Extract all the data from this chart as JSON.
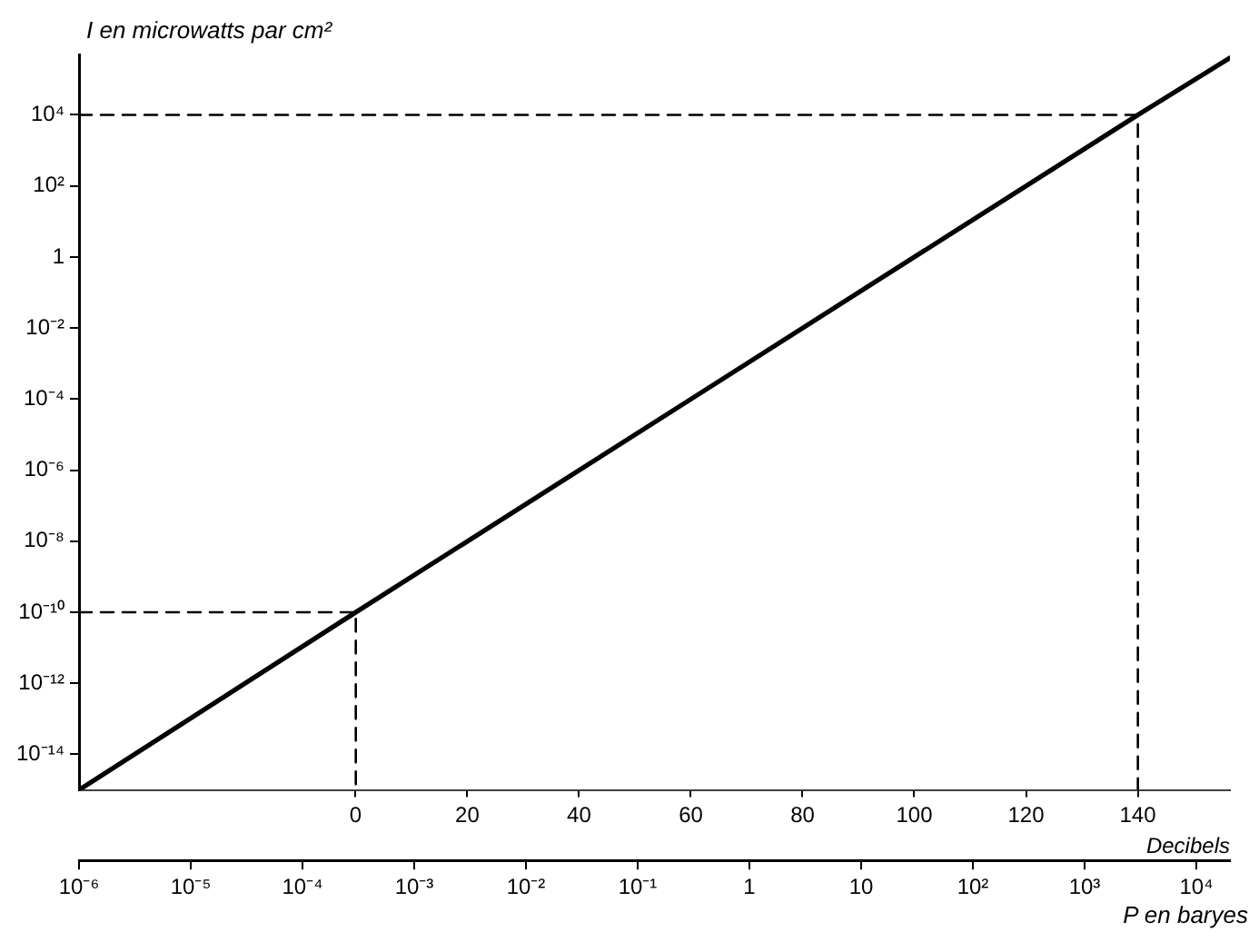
{
  "chart_data": {
    "type": "line",
    "xlabel": "P en baryes",
    "ylabel": "I en microwatts par cm²",
    "x2label": "Decibels",
    "log": "xy",
    "grid": false,
    "legend": false,
    "marker": "none",
    "xlim": [
      1e-06,
      20000.0
    ],
    "xticks": [
      {
        "value": 1e-06,
        "label": "10⁻⁶"
      },
      {
        "value": 1e-05,
        "label": "10⁻⁵"
      },
      {
        "value": 0.0001,
        "label": "10⁻⁴"
      },
      {
        "value": 0.001,
        "label": "10⁻³"
      },
      {
        "value": 0.01,
        "label": "10⁻²"
      },
      {
        "value": 0.1,
        "label": "10⁻¹"
      },
      1,
      10,
      {
        "value": 100,
        "label": "10²"
      },
      {
        "value": 1000,
        "label": "10³"
      },
      {
        "value": 10000,
        "label": "10⁴"
      }
    ],
    "ylim": [
      1e-15,
      500000.0
    ],
    "yticks": [
      {
        "value": 1e-14,
        "label": "10⁻¹⁴"
      },
      {
        "value": 1e-12,
        "label": "10⁻¹²"
      },
      {
        "value": 1e-10,
        "label": "10⁻¹⁰"
      },
      {
        "value": 1e-08,
        "label": "10⁻⁸"
      },
      {
        "value": 1e-06,
        "label": "10⁻⁶"
      },
      {
        "value": 0.0001,
        "label": "10⁻⁴"
      },
      {
        "value": 0.01,
        "label": "10⁻²"
      },
      1,
      {
        "value": 100,
        "label": "10²"
      },
      {
        "value": 10000,
        "label": "10⁴"
      }
    ],
    "x2lim": [
      -49.5,
      156.5
    ],
    "x2ticks": [
      0,
      20,
      40,
      60,
      80,
      100,
      120,
      140
    ],
    "series": [
      {
        "color": "#000000",
        "line_style": "solid",
        "x": [
          1e-06,
          0.0003,
          3000.0,
          20000.0
        ],
        "values": [
          1e-15,
          1e-10,
          10000.0,
          400000.0
        ]
      },
      {
        "color": "#000000",
        "line_style": "dashed",
        "x": [
          1e-06,
          0.0003,
          0.0003
        ],
        "values": [
          1e-10,
          1e-10,
          1e-15
        ]
      },
      {
        "color": "#000000",
        "line_style": "dashed",
        "x": [
          1e-06,
          3000.0,
          3000.0
        ],
        "values": [
          10000.0,
          10000.0,
          1e-15
        ]
      }
    ]
  }
}
